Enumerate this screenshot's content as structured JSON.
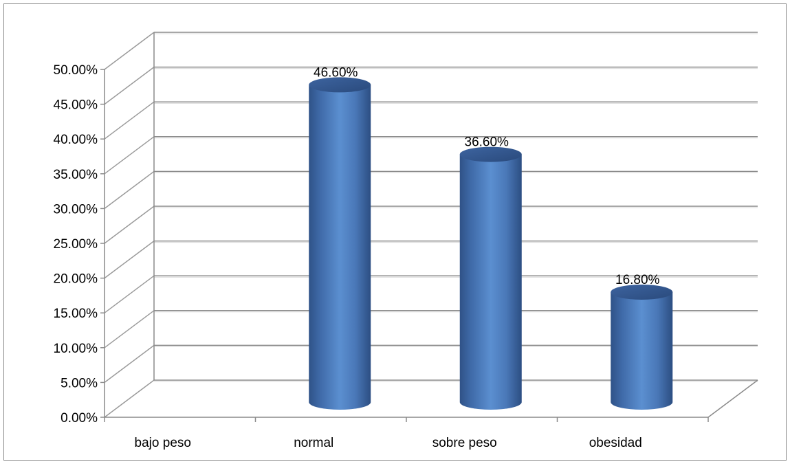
{
  "chart_data": {
    "type": "bar",
    "categories": [
      "bajo peso",
      "normal",
      "sobre peso",
      "obesidad"
    ],
    "values": [
      0,
      46.6,
      36.6,
      16.8
    ],
    "data_labels": [
      "",
      "46.60%",
      "36.60%",
      "16.80%"
    ],
    "ylim": [
      0,
      50
    ],
    "y_ticks": [
      0,
      5,
      10,
      15,
      20,
      25,
      30,
      35,
      40,
      45,
      50
    ],
    "y_tick_labels": [
      "0.00%",
      "5.00%",
      "10.00%",
      "15.00%",
      "20.00%",
      "25.00%",
      "30.00%",
      "35.00%",
      "40.00%",
      "45.00%",
      "50.00%"
    ],
    "grid": true,
    "legend": "none",
    "style": "3d-cylinder",
    "bar_color": "#4f81bd"
  }
}
